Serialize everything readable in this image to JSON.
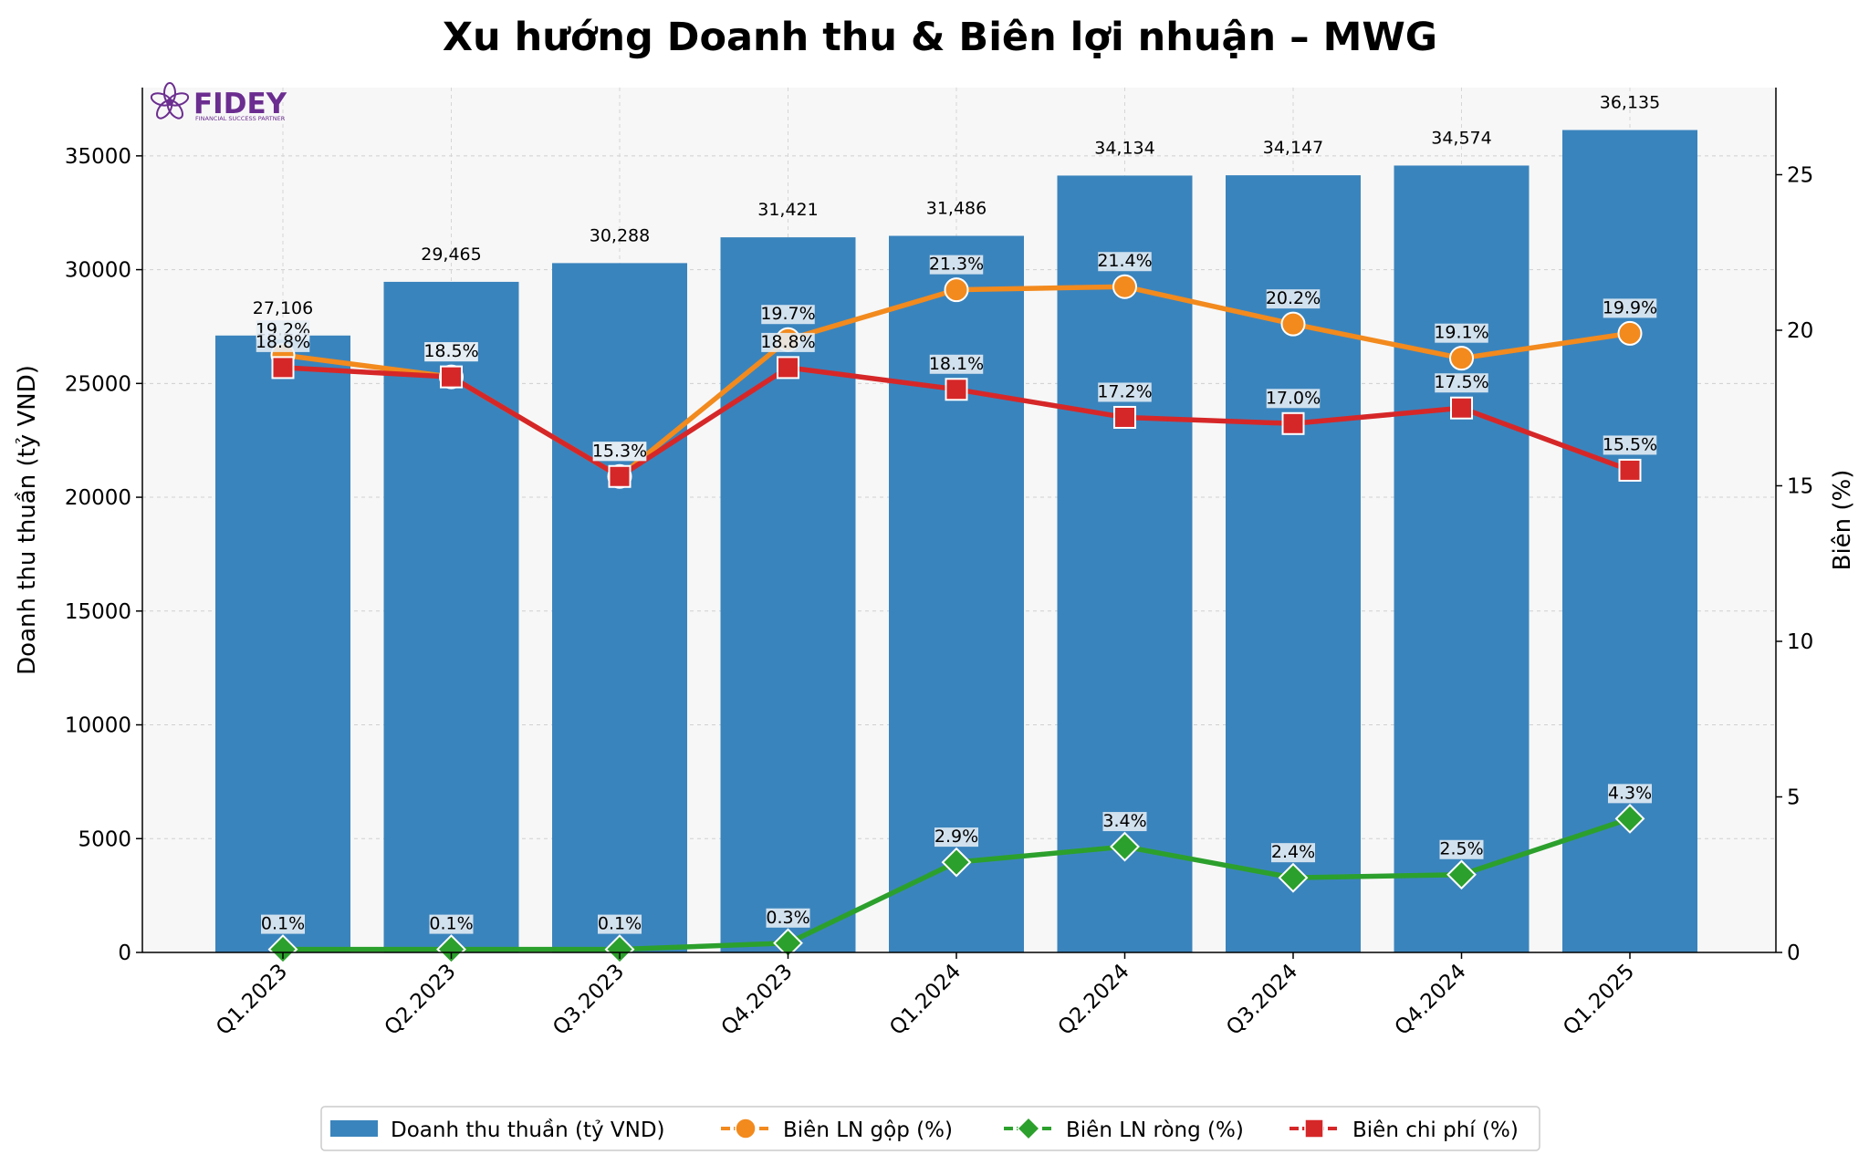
{
  "chart_data": {
    "type": "bar",
    "title": "Xu hướng Doanh thu & Biên lợi nhuận – MWG",
    "ylabel": "Doanh thu thuần (tỷ VND)",
    "y2label": "Biên (%)",
    "ylim": [
      0,
      38000
    ],
    "y2lim": [
      0,
      27.8
    ],
    "yticks": [
      "0",
      "5000",
      "10000",
      "15000",
      "20000",
      "25000",
      "30000",
      "35000"
    ],
    "y2ticks": [
      "0",
      "5",
      "10",
      "15",
      "20",
      "25"
    ],
    "categories": [
      "Q1.2023",
      "Q2.2023",
      "Q3.2023",
      "Q4.2023",
      "Q1.2024",
      "Q2.2024",
      "Q3.2024",
      "Q4.2024",
      "Q1.2025"
    ],
    "bars": {
      "name": "Doanh thu thuần (tỷ VND)",
      "values": [
        27106,
        29465,
        30288,
        31421,
        31486,
        34134,
        34147,
        34574,
        36135
      ],
      "labels": [
        "27,106",
        "29,465",
        "30,288",
        "31,421",
        "31,486",
        "34,134",
        "34,147",
        "34,574",
        "36,135"
      ],
      "color": "#3a84bd"
    },
    "series": [
      {
        "name": "Biên LN gộp (%)",
        "values": [
          19.2,
          18.5,
          15.3,
          19.7,
          21.3,
          21.4,
          20.2,
          19.1,
          19.9
        ],
        "labels": [
          "19.2%",
          "18.5%",
          "15.3%",
          "19.7%",
          "21.3%",
          "21.4%",
          "20.2%",
          "19.1%",
          "19.9%"
        ],
        "color": "#f28a1e",
        "marker": "circle"
      },
      {
        "name": "Biên LN ròng (%)",
        "values": [
          0.1,
          0.1,
          0.1,
          0.3,
          2.9,
          3.4,
          2.4,
          2.5,
          4.3
        ],
        "labels": [
          "0.1%",
          "0.1%",
          "0.1%",
          "0.3%",
          "2.9%",
          "3.4%",
          "2.4%",
          "2.5%",
          "4.3%"
        ],
        "color": "#2ca02c",
        "marker": "diamond"
      },
      {
        "name": "Biên chi phí (%)",
        "values": [
          18.8,
          18.5,
          15.3,
          18.8,
          18.1,
          17.2,
          17.0,
          17.5,
          15.5
        ],
        "labels": [
          "18.8%",
          "18.5%",
          "15.3%",
          "18.8%",
          "18.1%",
          "17.2%",
          "17.0%",
          "17.5%",
          "15.5%"
        ],
        "color": "#d62728",
        "marker": "square"
      }
    ],
    "grid": true,
    "legend_position": "bottom-center"
  },
  "logo": {
    "text": "FIDEY",
    "tagline": "FINANCIAL SUCCESS PARTNER",
    "color": "#6b2d8f"
  }
}
